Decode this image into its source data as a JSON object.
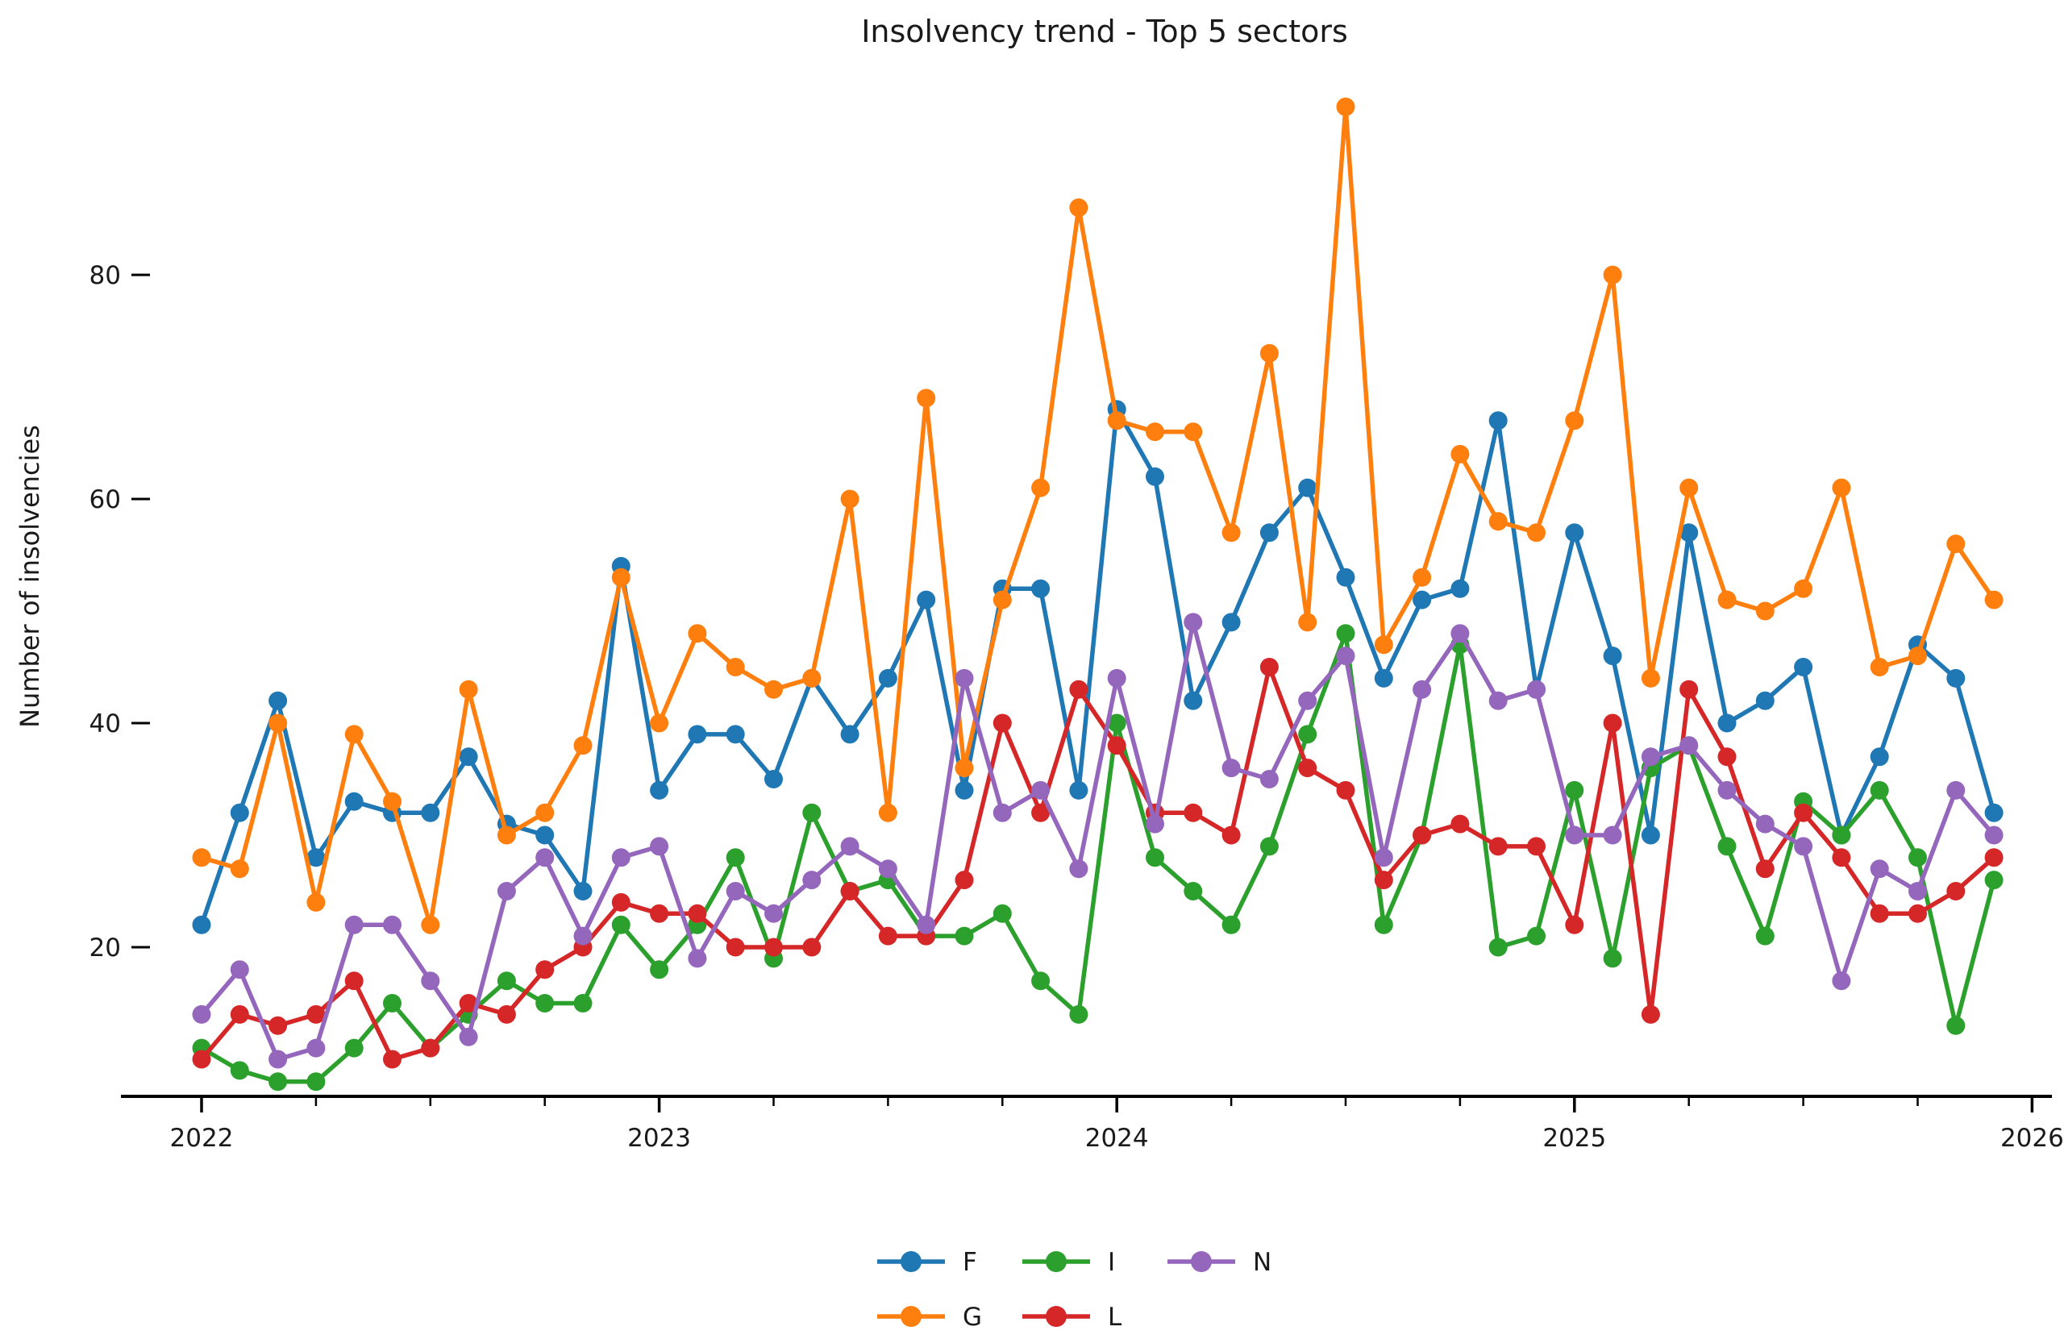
{
  "title": "Insolvency trend - Top 5 sectors",
  "y_axis": {
    "label": "Number of insolvencies",
    "tick_labels": [
      "20",
      "40",
      "60",
      "80"
    ]
  },
  "x_axis": {
    "tick_labels": [
      "2022",
      "2023",
      "2024",
      "2025",
      "2026"
    ]
  },
  "legend": {
    "entries": [
      "F",
      "G",
      "I",
      "L",
      "N"
    ]
  },
  "colors": {
    "F": "#1f77b4",
    "G": "#ff7f0e",
    "I": "#2ca02c",
    "L": "#d62728",
    "N": "#9467bd",
    "axis": "#000000",
    "text": "#1a1a1a"
  },
  "chart_data": {
    "type": "line",
    "title": "Insolvency trend - Top 5 sectors",
    "xlabel": "",
    "ylabel": "Number of insolvencies",
    "x_tick_years": [
      2022,
      2023,
      2024,
      2025,
      2026
    ],
    "y_ticks": [
      20,
      40,
      60,
      80
    ],
    "ylim": [
      4,
      99
    ],
    "grid": false,
    "legend_position": "bottom-center",
    "marker": "circle",
    "x": [
      "2022-01",
      "2022-02",
      "2022-03",
      "2022-04",
      "2022-05",
      "2022-06",
      "2022-07",
      "2022-08",
      "2022-09",
      "2022-10",
      "2022-11",
      "2022-12",
      "2023-01",
      "2023-02",
      "2023-03",
      "2023-04",
      "2023-05",
      "2023-06",
      "2023-07",
      "2023-08",
      "2023-09",
      "2023-10",
      "2023-11",
      "2023-12",
      "2024-01",
      "2024-02",
      "2024-03",
      "2024-04",
      "2024-05",
      "2024-06",
      "2024-07",
      "2024-08",
      "2024-09",
      "2024-10",
      "2024-11",
      "2024-12",
      "2025-01",
      "2025-02",
      "2025-03",
      "2025-04",
      "2025-05",
      "2025-06",
      "2025-07",
      "2025-08",
      "2025-09",
      "2025-10",
      "2025-11",
      "2025-12"
    ],
    "series": [
      {
        "name": "F",
        "color": "#1f77b4",
        "values": [
          22,
          32,
          42,
          28,
          33,
          32,
          32,
          37,
          31,
          30,
          25,
          54,
          34,
          39,
          39,
          35,
          44,
          39,
          44,
          51,
          34,
          52,
          52,
          34,
          68,
          62,
          42,
          49,
          57,
          61,
          53,
          44,
          51,
          52,
          67,
          43,
          57,
          46,
          30,
          57,
          40,
          42,
          45,
          30,
          37,
          47,
          44,
          32
        ]
      },
      {
        "name": "G",
        "color": "#ff7f0e",
        "values": [
          28,
          27,
          40,
          24,
          39,
          33,
          22,
          43,
          30,
          32,
          38,
          53,
          40,
          48,
          45,
          43,
          44,
          60,
          32,
          69,
          36,
          51,
          61,
          86,
          67,
          66,
          66,
          57,
          73,
          49,
          95,
          47,
          53,
          64,
          58,
          57,
          67,
          80,
          44,
          61,
          51,
          50,
          52,
          61,
          45,
          46,
          56,
          51
        ]
      },
      {
        "name": "I",
        "color": "#2ca02c",
        "values": [
          11,
          9,
          8,
          8,
          11,
          15,
          11,
          14,
          17,
          15,
          15,
          22,
          18,
          22,
          28,
          19,
          32,
          25,
          26,
          21,
          21,
          23,
          17,
          14,
          40,
          28,
          25,
          22,
          29,
          39,
          48,
          22,
          30,
          47,
          20,
          21,
          34,
          19,
          36,
          38,
          29,
          21,
          33,
          30,
          34,
          28,
          13,
          26
        ]
      },
      {
        "name": "L",
        "color": "#d62728",
        "values": [
          10,
          14,
          13,
          14,
          17,
          10,
          11,
          15,
          14,
          18,
          20,
          24,
          23,
          23,
          20,
          20,
          20,
          25,
          21,
          21,
          26,
          40,
          32,
          43,
          38,
          32,
          32,
          30,
          45,
          36,
          34,
          26,
          30,
          31,
          29,
          29,
          22,
          40,
          14,
          43,
          37,
          27,
          32,
          28,
          23,
          23,
          25,
          28
        ]
      },
      {
        "name": "N",
        "color": "#9467bd",
        "values": [
          14,
          18,
          10,
          11,
          22,
          22,
          17,
          12,
          25,
          28,
          21,
          28,
          29,
          19,
          25,
          23,
          26,
          29,
          27,
          22,
          44,
          32,
          34,
          27,
          44,
          31,
          49,
          36,
          35,
          42,
          46,
          28,
          43,
          48,
          42,
          43,
          30,
          30,
          37,
          38,
          34,
          31,
          29,
          17,
          27,
          25,
          34,
          30
        ]
      }
    ]
  }
}
